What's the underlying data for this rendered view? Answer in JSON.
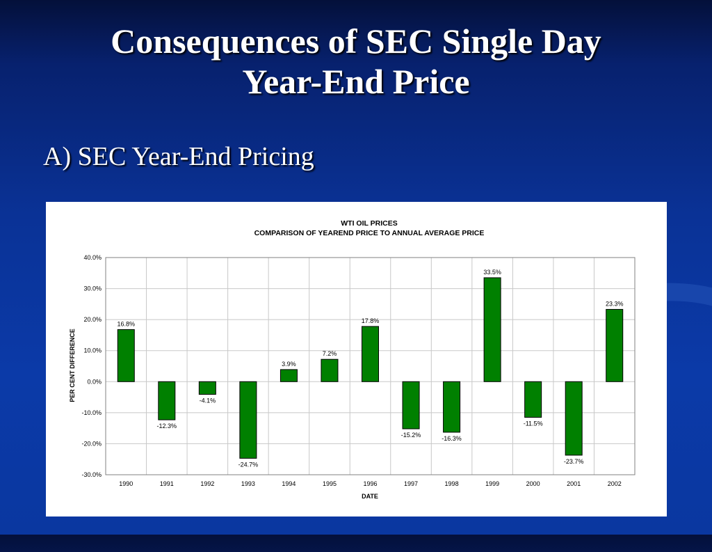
{
  "slide": {
    "title_line1": "Consequences of SEC Single Day",
    "title_line2": "Year-End Price",
    "bullet": "A) SEC Year-End Pricing"
  },
  "chart_data": {
    "type": "bar",
    "title": "WTI OIL PRICES",
    "subtitle": "COMPARISON OF YEAREND PRICE TO ANNUAL AVERAGE PRICE",
    "xlabel": "DATE",
    "ylabel": "PER CENT DIFFERENCE",
    "categories": [
      "1990",
      "1991",
      "1992",
      "1993",
      "1994",
      "1995",
      "1996",
      "1997",
      "1998",
      "1999",
      "2000",
      "2001",
      "2002"
    ],
    "values": [
      16.8,
      -12.3,
      -4.1,
      -24.7,
      3.9,
      7.2,
      17.8,
      -15.2,
      -16.3,
      33.5,
      -11.5,
      -23.7,
      23.3
    ],
    "value_labels": [
      "16.8%",
      "-12.3%",
      "-4.1%",
      "-24.7%",
      "3.9%",
      "7.2%",
      "17.8%",
      "-15.2%",
      "-16.3%",
      "33.5%",
      "-11.5%",
      "-23.7%",
      "23.3%"
    ],
    "ylim": [
      -30,
      40
    ],
    "yticks": [
      40,
      30,
      20,
      10,
      0,
      -10,
      -20,
      -30
    ],
    "ytick_labels": [
      "40.0%",
      "30.0%",
      "20.0%",
      "10.0%",
      "0.0%",
      "-10.0%",
      "-20.0%",
      "-30.0%"
    ],
    "grid": true,
    "legend": "none",
    "bar_color": "#008000"
  }
}
